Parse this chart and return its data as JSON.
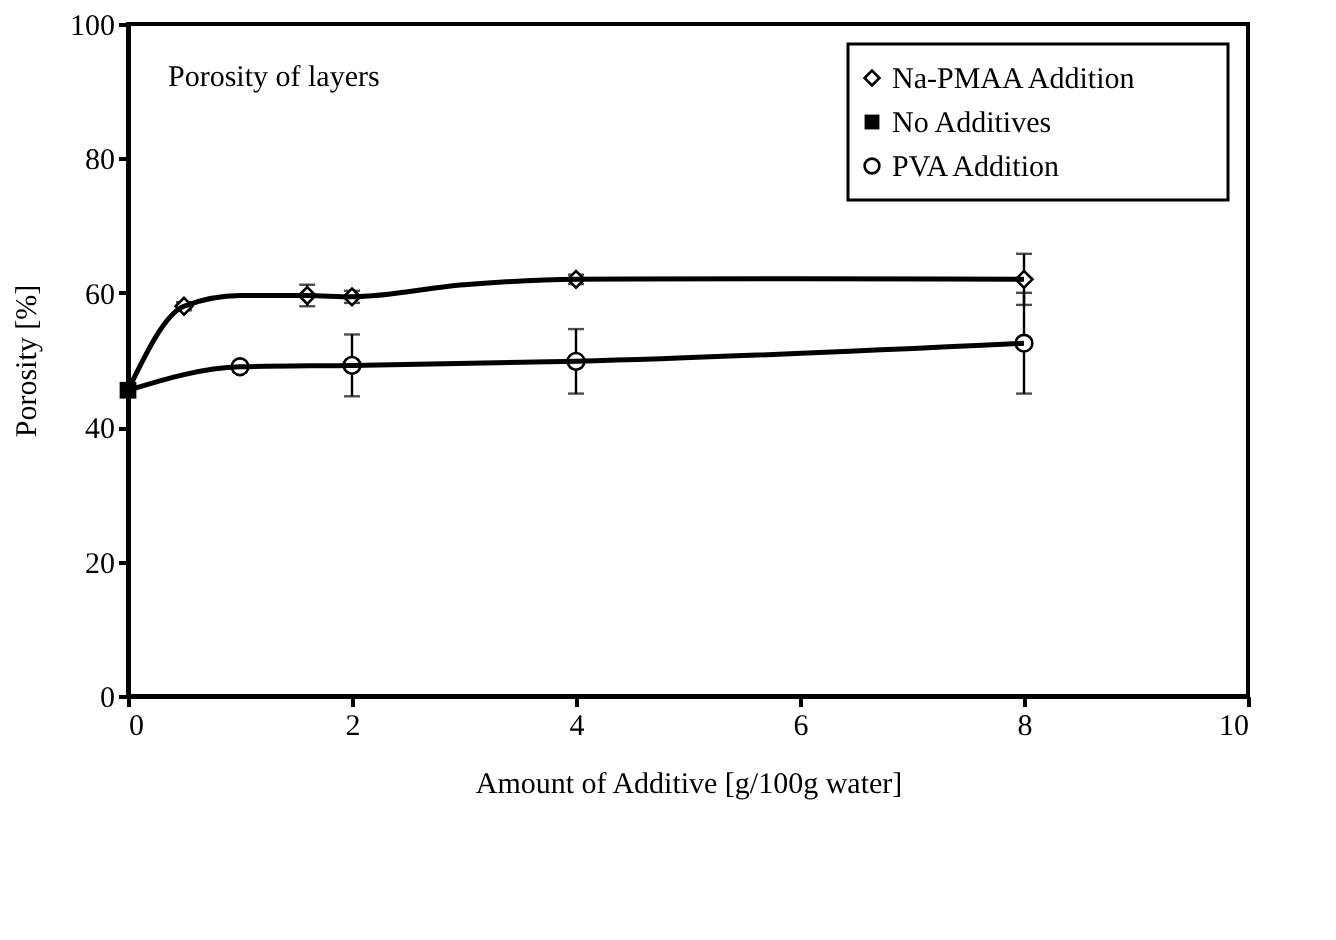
{
  "chart_data": {
    "type": "scatter",
    "xlabel": "Amount of Additive [g/100g water]",
    "ylabel": "Porosity [%]",
    "annotations": [
      "Porosity of layers"
    ],
    "xlim": [
      0,
      10
    ],
    "xticks": [
      0,
      2,
      4,
      6,
      8,
      10
    ],
    "ylim": [
      0,
      100
    ],
    "yticks": [
      0,
      20,
      40,
      60,
      80,
      100
    ],
    "grid": false,
    "legend": "top right",
    "series": [
      {
        "name": "Na-PMAA Addition",
        "color": "#000000",
        "marker": "diamond",
        "x": [
          0.5,
          1.6,
          2,
          4,
          8
        ],
        "values": [
          58,
          59.6,
          59.4,
          62,
          62
        ],
        "errors": [
          0.6,
          1.6,
          0.9,
          0.7,
          3.8
        ]
      },
      {
        "name": "No Additives",
        "color": "#000000",
        "marker": "square",
        "x": [
          0
        ],
        "values": [
          45.5
        ]
      },
      {
        "name": "PVA Addition",
        "color": "#000000",
        "marker": "circle",
        "x": [
          1,
          2,
          4,
          8
        ],
        "values": [
          49,
          49.2,
          49.8,
          52.5
        ],
        "errors": [
          0.7,
          4.6,
          4.8,
          7.5
        ]
      },
      {
        "type": "line",
        "color": "#000000",
        "marker": "none",
        "x": [
          0,
          0.5,
          1,
          1.6,
          2,
          3,
          4,
          6,
          8
        ],
        "values": [
          45.5,
          58,
          59.6,
          59.6,
          59.4,
          61.2,
          62,
          62.1,
          62
        ]
      },
      {
        "type": "line",
        "color": "#000000",
        "marker": "none",
        "x": [
          0,
          1,
          2,
          4,
          8
        ],
        "values": [
          45.5,
          49,
          49.2,
          49.8,
          52.5
        ]
      }
    ]
  }
}
